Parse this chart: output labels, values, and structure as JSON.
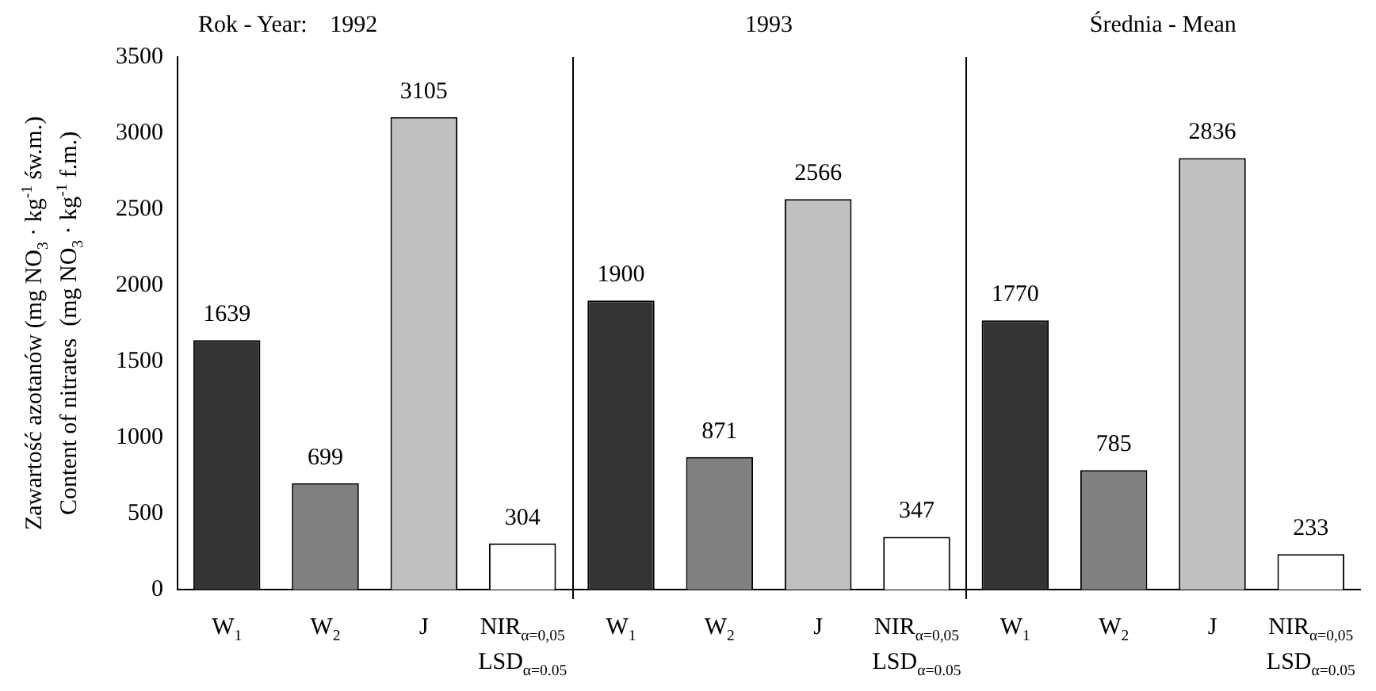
{
  "chart_data": {
    "type": "bar",
    "categories": [
      "W$_{1}$",
      "W$_{2}$",
      "J",
      "NIR$_{α=0,05}$\nLSD$_{α=0.05}$",
      "W$_{1}$",
      "W$_{2}$",
      "J",
      "NIR$_{α=0,05}$\nLSD$_{α=0.05}$",
      "W$_{1}$",
      "W$_{2}$",
      "J",
      "NIR$_{α=0,05}$\nLSD$_{α=0.05}$"
    ],
    "values": [
      1639,
      699,
      3105,
      304,
      1900,
      871,
      2566,
      347,
      1770,
      785,
      2836,
      233
    ],
    "colors": [
      "#333333",
      "#808080",
      "#c0c0c0",
      "#ffffff",
      "#333333",
      "#808080",
      "#c0c0c0",
      "#ffffff",
      "#333333",
      "#808080",
      "#c0c0c0",
      "#ffffff"
    ],
    "ylabel": "Zawartość azotanów (mg NO$_{3}$ · kg$^{-1}$ św.m.)\nContent of nitrates  (mg NO$_{3}$ · kg$^{-1}$ f.m.)",
    "ylim": [
      0,
      3500
    ],
    "yticks": [
      0,
      500,
      1000,
      1500,
      2000,
      2500,
      3000,
      3500
    ],
    "annotations": [
      "Rok - Year:",
      "1992",
      "1993",
      "Średnia - Mean"
    ],
    "data_labels": true,
    "grid": false,
    "legend": false
  }
}
